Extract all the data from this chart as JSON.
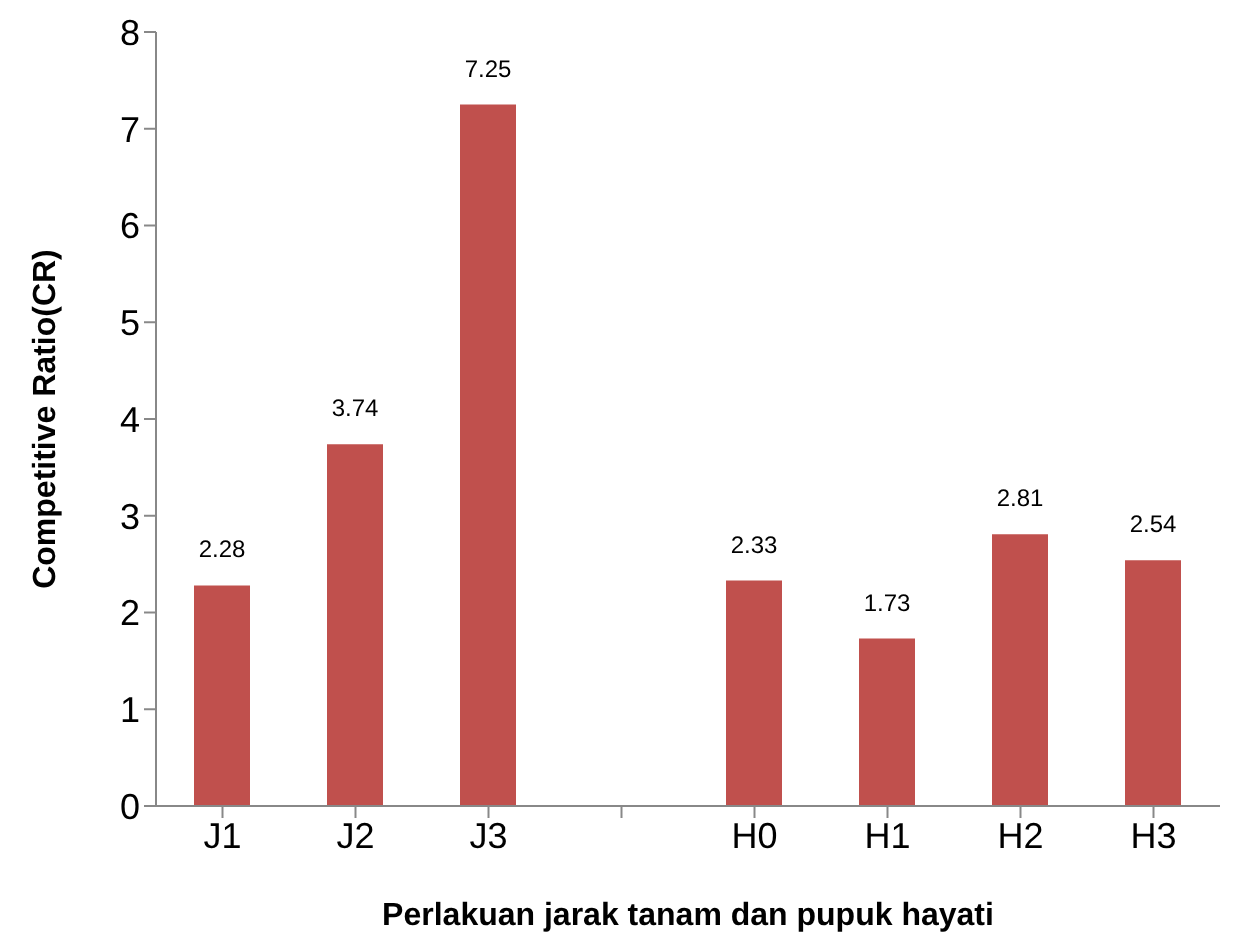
{
  "chart_data": {
    "type": "bar",
    "xlabel": "Perlakuan jarak tanam dan pupuk hayati",
    "ylabel": "Competitive Ratio(CR)",
    "categories": [
      "J1",
      "J2",
      "J3",
      null,
      "H0",
      "H1",
      "H2",
      "H3"
    ],
    "values": [
      2.28,
      3.74,
      7.25,
      null,
      2.33,
      1.73,
      2.81,
      2.54
    ],
    "color": "#c0504d",
    "ylim": [
      0,
      8
    ],
    "yticks": [
      0,
      1,
      2,
      3,
      4,
      5,
      6,
      7,
      8
    ],
    "grid": false,
    "data_labels": true
  }
}
